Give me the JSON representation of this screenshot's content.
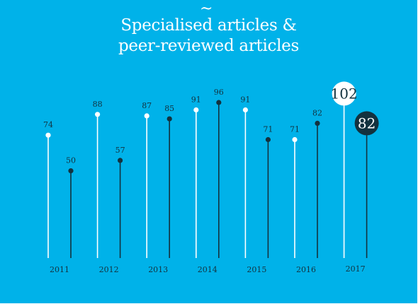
{
  "title_line1": "Specialised articles &",
  "title_line2": "peer-reviewed articles",
  "chart_data": {
    "type": "lollipop",
    "categories": [
      "2011",
      "2012",
      "2013",
      "2014",
      "2015",
      "2016",
      "2017"
    ],
    "series": [
      {
        "color": "#ffffff",
        "values": [
          74,
          88,
          87,
          91,
          91,
          71,
          102
        ]
      },
      {
        "color": "#13323f",
        "values": [
          50,
          57,
          85,
          96,
          71,
          82,
          82
        ]
      }
    ],
    "highlight_category": "2017",
    "grid": false,
    "legend": "none",
    "colors": {
      "background": "#00b2e9",
      "text": "#13323f",
      "title": "#ffffff"
    }
  }
}
